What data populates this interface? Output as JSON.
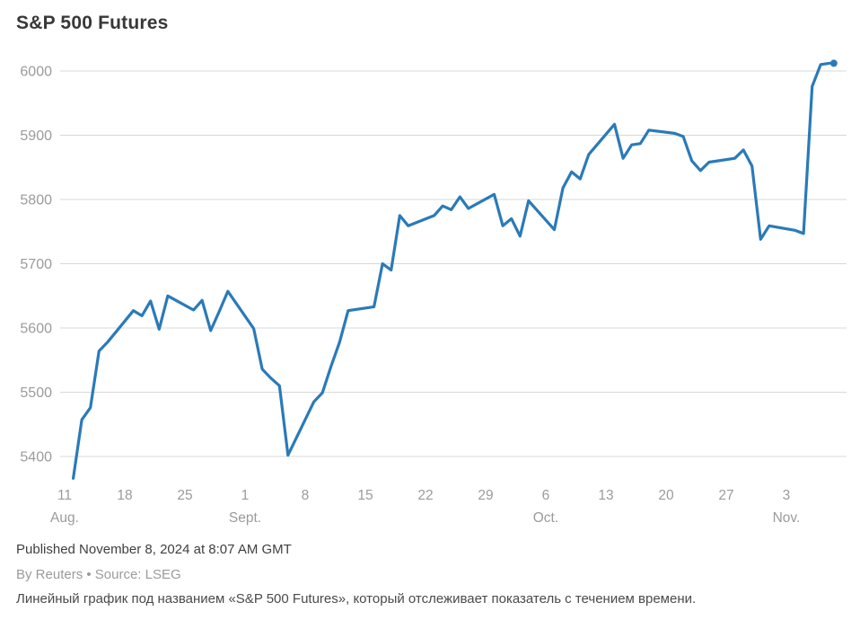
{
  "title": "S&P 500 Futures",
  "footer": {
    "published": "Published November 8, 2024 at 8:07 AM GMT",
    "byline": "By Reuters • Source: LSEG",
    "description": "Линейный график под названием «S&P 500 Futures», который отслеживает показатель с течением времени."
  },
  "colors": {
    "line": "#2a7ab9",
    "grid": "#d8d8d8",
    "axis_text": "#9b9b9b",
    "title_text": "#383838"
  },
  "chart_data": {
    "type": "line",
    "title": "S&P 500 Futures",
    "xlabel": "",
    "ylabel": "",
    "grid": true,
    "legend": false,
    "ylim": [
      5360,
      6020
    ],
    "y_ticks": [
      6000,
      5900,
      5800,
      5700,
      5600,
      5500,
      5400
    ],
    "x_ticks": [
      {
        "day": 0,
        "label": "11",
        "month": "Aug."
      },
      {
        "day": 7,
        "label": "18",
        "month": ""
      },
      {
        "day": 14,
        "label": "25",
        "month": ""
      },
      {
        "day": 21,
        "label": "1",
        "month": "Sept."
      },
      {
        "day": 28,
        "label": "8",
        "month": ""
      },
      {
        "day": 35,
        "label": "15",
        "month": ""
      },
      {
        "day": 42,
        "label": "22",
        "month": ""
      },
      {
        "day": 49,
        "label": "29",
        "month": ""
      },
      {
        "day": 56,
        "label": "6",
        "month": "Oct."
      },
      {
        "day": 63,
        "label": "13",
        "month": ""
      },
      {
        "day": 70,
        "label": "20",
        "month": ""
      },
      {
        "day": 77,
        "label": "27",
        "month": ""
      },
      {
        "day": 84,
        "label": "3",
        "month": "Nov."
      }
    ],
    "series": [
      {
        "name": "S&P 500 Futures",
        "points": [
          {
            "date": "Aug 12",
            "day": 1,
            "value": 5366
          },
          {
            "date": "Aug 13",
            "day": 2,
            "value": 5457
          },
          {
            "date": "Aug 14",
            "day": 3,
            "value": 5476
          },
          {
            "date": "Aug 15",
            "day": 4,
            "value": 5564
          },
          {
            "date": "Aug 16",
            "day": 5,
            "value": 5578
          },
          {
            "date": "Aug 19",
            "day": 8,
            "value": 5627
          },
          {
            "date": "Aug 20",
            "day": 9,
            "value": 5619
          },
          {
            "date": "Aug 21",
            "day": 10,
            "value": 5642
          },
          {
            "date": "Aug 22",
            "day": 11,
            "value": 5598
          },
          {
            "date": "Aug 23",
            "day": 12,
            "value": 5650
          },
          {
            "date": "Aug 26",
            "day": 15,
            "value": 5628
          },
          {
            "date": "Aug 27",
            "day": 16,
            "value": 5643
          },
          {
            "date": "Aug 28",
            "day": 17,
            "value": 5596
          },
          {
            "date": "Aug 29",
            "day": 18,
            "value": 5626
          },
          {
            "date": "Aug 30",
            "day": 19,
            "value": 5657
          },
          {
            "date": "Sep 2",
            "day": 22,
            "value": 5599
          },
          {
            "date": "Sep 3",
            "day": 23,
            "value": 5536
          },
          {
            "date": "Sep 4",
            "day": 24,
            "value": 5522
          },
          {
            "date": "Sep 5",
            "day": 25,
            "value": 5510
          },
          {
            "date": "Sep 6",
            "day": 26,
            "value": 5402
          },
          {
            "date": "Sep 9",
            "day": 29,
            "value": 5485
          },
          {
            "date": "Sep 10",
            "day": 30,
            "value": 5499
          },
          {
            "date": "Sep 11",
            "day": 31,
            "value": 5540
          },
          {
            "date": "Sep 12",
            "day": 32,
            "value": 5578
          },
          {
            "date": "Sep 13",
            "day": 33,
            "value": 5627
          },
          {
            "date": "Sep 16",
            "day": 36,
            "value": 5633
          },
          {
            "date": "Sep 17",
            "day": 37,
            "value": 5700
          },
          {
            "date": "Sep 18",
            "day": 38,
            "value": 5690
          },
          {
            "date": "Sep 19",
            "day": 39,
            "value": 5775
          },
          {
            "date": "Sep 20",
            "day": 40,
            "value": 5759
          },
          {
            "date": "Sep 23",
            "day": 43,
            "value": 5775
          },
          {
            "date": "Sep 24",
            "day": 44,
            "value": 5790
          },
          {
            "date": "Sep 25",
            "day": 45,
            "value": 5784
          },
          {
            "date": "Sep 26",
            "day": 46,
            "value": 5804
          },
          {
            "date": "Sep 27",
            "day": 47,
            "value": 5786
          },
          {
            "date": "Sep 30",
            "day": 50,
            "value": 5808
          },
          {
            "date": "Oct 1",
            "day": 51,
            "value": 5759
          },
          {
            "date": "Oct 2",
            "day": 52,
            "value": 5770
          },
          {
            "date": "Oct 3",
            "day": 53,
            "value": 5743
          },
          {
            "date": "Oct 4",
            "day": 54,
            "value": 5798
          },
          {
            "date": "Oct 7",
            "day": 57,
            "value": 5753
          },
          {
            "date": "Oct 8",
            "day": 58,
            "value": 5818
          },
          {
            "date": "Oct 9",
            "day": 59,
            "value": 5843
          },
          {
            "date": "Oct 10",
            "day": 60,
            "value": 5832
          },
          {
            "date": "Oct 11",
            "day": 61,
            "value": 5870
          },
          {
            "date": "Oct 14",
            "day": 64,
            "value": 5917
          },
          {
            "date": "Oct 15",
            "day": 65,
            "value": 5864
          },
          {
            "date": "Oct 16",
            "day": 66,
            "value": 5885
          },
          {
            "date": "Oct 17",
            "day": 67,
            "value": 5887
          },
          {
            "date": "Oct 18",
            "day": 68,
            "value": 5908
          },
          {
            "date": "Oct 21",
            "day": 71,
            "value": 5903
          },
          {
            "date": "Oct 22",
            "day": 72,
            "value": 5898
          },
          {
            "date": "Oct 23",
            "day": 73,
            "value": 5860
          },
          {
            "date": "Oct 24",
            "day": 74,
            "value": 5845
          },
          {
            "date": "Oct 25",
            "day": 75,
            "value": 5858
          },
          {
            "date": "Oct 28",
            "day": 78,
            "value": 5864
          },
          {
            "date": "Oct 29",
            "day": 79,
            "value": 5877
          },
          {
            "date": "Oct 30",
            "day": 80,
            "value": 5852
          },
          {
            "date": "Oct 31",
            "day": 81,
            "value": 5738
          },
          {
            "date": "Nov 1",
            "day": 82,
            "value": 5759
          },
          {
            "date": "Nov 4",
            "day": 85,
            "value": 5752
          },
          {
            "date": "Nov 5",
            "day": 86,
            "value": 5747
          },
          {
            "date": "Nov 6",
            "day": 87,
            "value": 5976
          },
          {
            "date": "Nov 7",
            "day": 88,
            "value": 6010
          },
          {
            "date": "Nov 8",
            "day": 89,
            "value": 6012
          }
        ]
      }
    ]
  }
}
